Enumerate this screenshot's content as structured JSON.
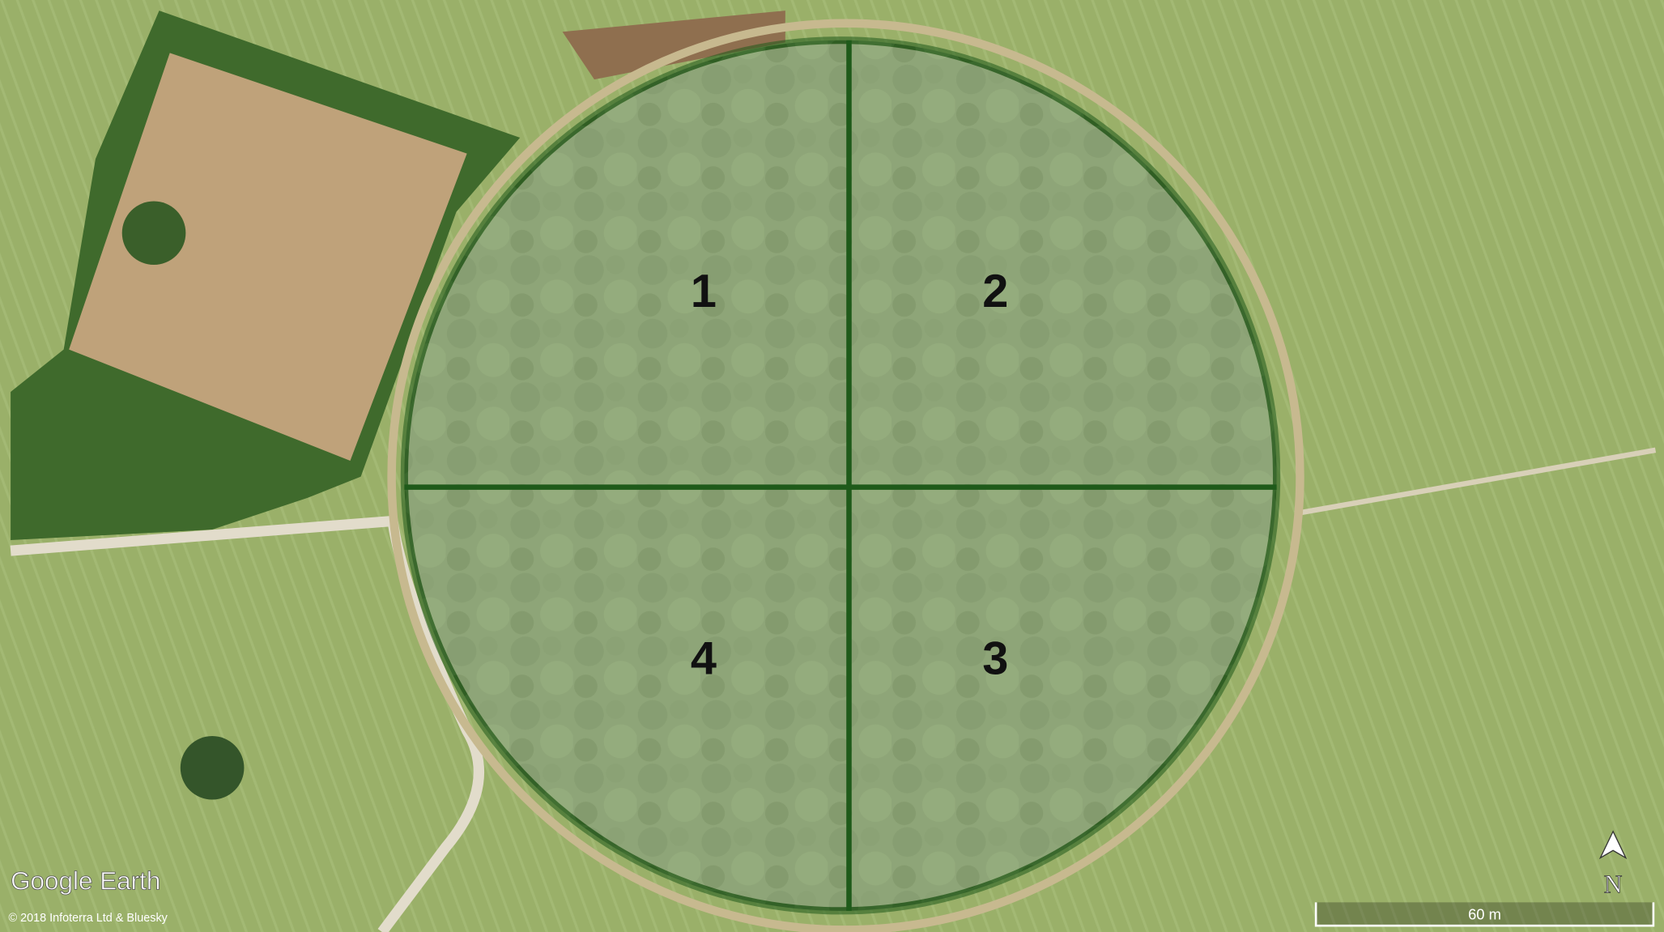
{
  "quadrants": [
    "1",
    "2",
    "3",
    "4"
  ],
  "attribution": {
    "logo": "Google Earth",
    "copyright": "© 2018 Infoterra Ltd & Bluesky"
  },
  "compass": "N",
  "scale_bar": "60 m"
}
